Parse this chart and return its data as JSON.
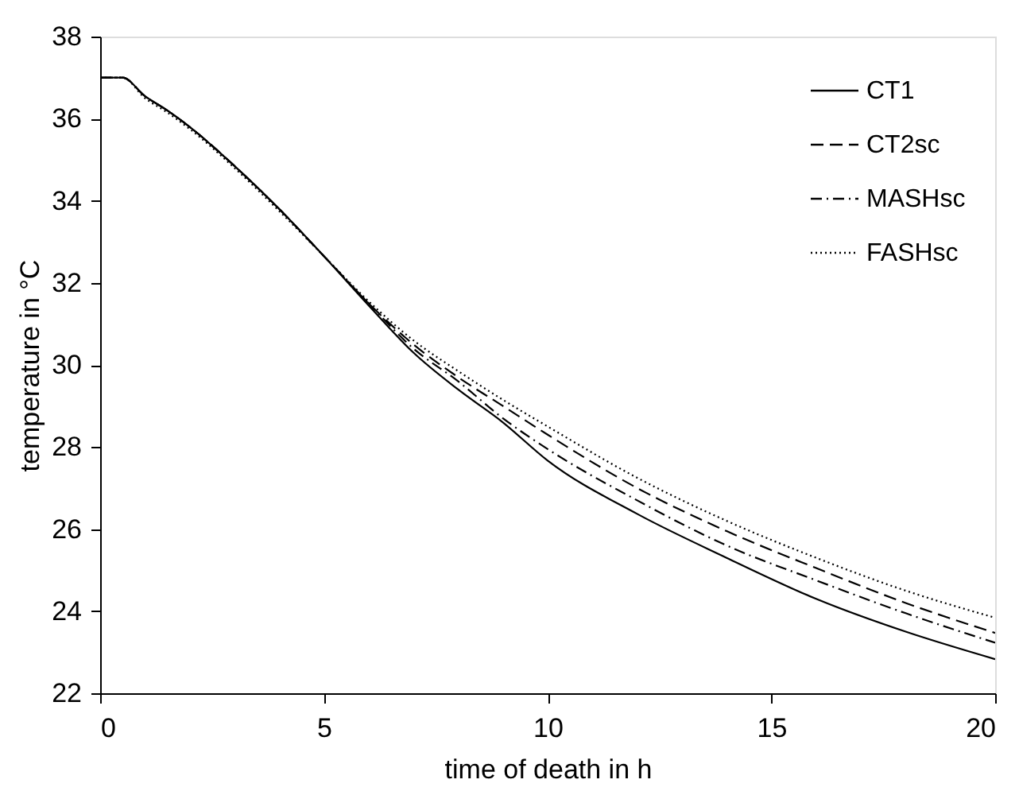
{
  "chart_data": {
    "type": "line",
    "xlabel": "time of death in h",
    "ylabel": "temperature in °C",
    "x": [
      0,
      0.5,
      1,
      1.5,
      2,
      3,
      4,
      5,
      6,
      7,
      8,
      9,
      10,
      12,
      14,
      16,
      18,
      20
    ],
    "series": [
      {
        "name": "CT1",
        "color": "#000000",
        "line_style": "solid",
        "values": [
          37,
          37,
          36.55,
          36.2,
          35.8,
          34.85,
          33.8,
          32.65,
          31.45,
          30.3,
          29.4,
          28.6,
          27.67,
          26.37,
          25.3,
          24.3,
          23.5,
          22.83
        ]
      },
      {
        "name": "CT2sc",
        "color": "#000000",
        "line_style": "dashed",
        "values": [
          37,
          37,
          36.55,
          36.2,
          35.8,
          34.85,
          33.8,
          32.65,
          31.5,
          30.5,
          29.7,
          29.0,
          28.3,
          27.0,
          25.95,
          25.05,
          24.2,
          23.47
        ]
      },
      {
        "name": "MASHsc",
        "color": "#000000",
        "line_style": "dashdot",
        "values": [
          37,
          37,
          36.55,
          36.2,
          35.8,
          34.85,
          33.8,
          32.65,
          31.5,
          30.4,
          29.6,
          28.7,
          27.95,
          26.7,
          25.6,
          24.75,
          23.95,
          23.23
        ]
      },
      {
        "name": "FASHsc",
        "color": "#000000",
        "line_style": "dotted",
        "values": [
          37,
          37,
          36.5,
          36.15,
          35.75,
          34.8,
          33.75,
          32.65,
          31.55,
          30.6,
          29.85,
          29.15,
          28.5,
          27.25,
          26.2,
          25.3,
          24.5,
          23.84
        ]
      }
    ],
    "xlim": [
      0,
      20
    ],
    "xticks": [
      0,
      5,
      10,
      15,
      20
    ],
    "ylim": [
      22,
      38
    ],
    "yticks": [
      22,
      24,
      26,
      28,
      30,
      32,
      34,
      36,
      38
    ],
    "grid": false,
    "legend": "top right"
  }
}
